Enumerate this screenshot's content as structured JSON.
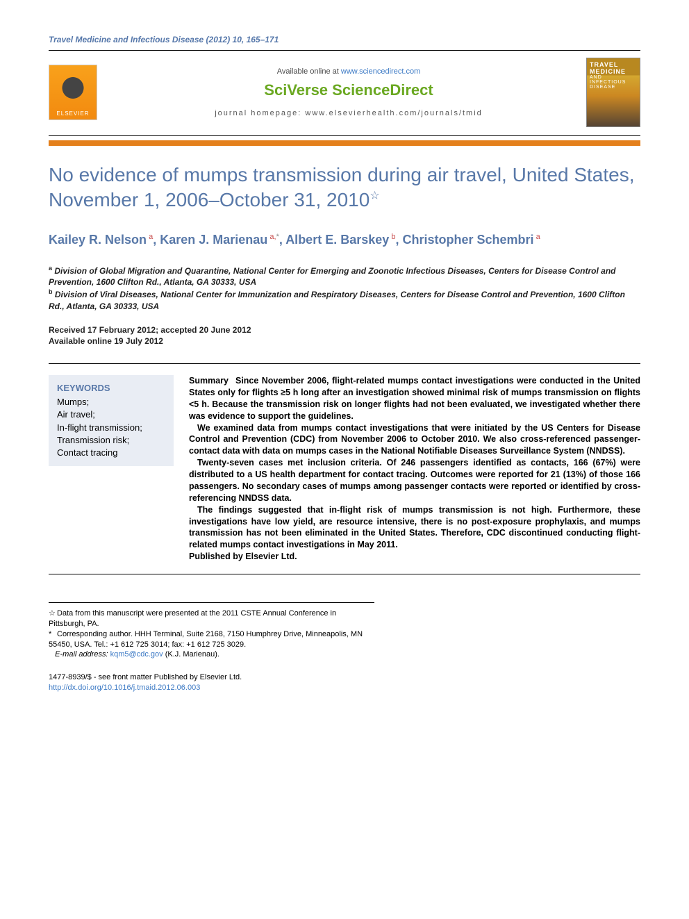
{
  "citation": "Travel Medicine and Infectious Disease (2012) 10, 165–171",
  "header": {
    "available_text": "Available online at ",
    "available_url": "www.sciencedirect.com",
    "brand": "SciVerse ScienceDirect",
    "journal_home_label": "journal homepage: ",
    "journal_home_url": "www.elsevierhealth.com/journals/tmid",
    "elsevier_label": "ELSEVIER",
    "cover_line1": "TRAVEL",
    "cover_line2": "MEDICINE",
    "cover_line3": "AND INFECTIOUS DISEASE"
  },
  "title": "No evidence of mumps transmission during air travel, United States, November 1, 2006–October 31, 2010",
  "title_star": "☆",
  "authors": {
    "a1_name": "Kailey R. Nelson",
    "a1_affil": "a",
    "a2_name": "Karen J. Marienau",
    "a2_affil": "a,",
    "a2_corr": "*",
    "a3_name": "Albert E. Barskey",
    "a3_affil": "b",
    "a4_name": "Christopher Schembri",
    "a4_affil": "a"
  },
  "affiliations": {
    "a_label": "a",
    "a_text": "Division of Global Migration and Quarantine, National Center for Emerging and Zoonotic Infectious Diseases, Centers for Disease Control and Prevention, 1600 Clifton Rd., Atlanta, GA 30333, USA",
    "b_label": "b",
    "b_text": "Division of Viral Diseases, National Center for Immunization and Respiratory Diseases, Centers for Disease Control and Prevention, 1600 Clifton Rd., Atlanta, GA 30333, USA"
  },
  "dates": {
    "received": "Received 17 February 2012; accepted 20 June 2012",
    "online": "Available online 19 July 2012"
  },
  "keywords": {
    "title": "KEYWORDS",
    "items": [
      "Mumps;",
      "Air travel;",
      "In-flight transmission;",
      "Transmission risk;",
      "Contact tracing"
    ]
  },
  "summary": {
    "lead": "Summary",
    "p1": "Since November 2006, flight-related mumps contact investigations were conducted in the United States only for flights ≥5 h long after an investigation showed minimal risk of mumps transmission on flights <5 h. Because the transmission risk on longer flights had not been evaluated, we investigated whether there was evidence to support the guidelines.",
    "p2": "We examined data from mumps contact investigations that were initiated by the US Centers for Disease Control and Prevention (CDC) from November 2006 to October 2010. We also cross-referenced passenger-contact data with data on mumps cases in the National Notifiable Diseases Surveillance System (NNDSS).",
    "p3": "Twenty-seven cases met inclusion criteria. Of 246 passengers identified as contacts, 166 (67%) were distributed to a US health department for contact tracing. Outcomes were reported for 21 (13%) of those 166 passengers. No secondary cases of mumps among passenger contacts were reported or identified by cross-referencing NNDSS data.",
    "p4": "The findings suggested that in-flight risk of mumps transmission is not high. Furthermore, these investigations have low yield, are resource intensive, there is no post-exposure prophylaxis, and mumps transmission has not been eliminated in the United States. Therefore, CDC discontinued conducting flight-related mumps contact investigations in May 2011.",
    "pub": "Published by Elsevier Ltd."
  },
  "footnotes": {
    "star_mark": "☆",
    "star_text": "Data from this manuscript were presented at the 2011 CSTE Annual Conference in Pittsburgh, PA.",
    "corr_mark": "*",
    "corr_text": "Corresponding author. HHH Terminal, Suite 2168, 7150 Humphrey Drive, Minneapolis, MN 55450, USA. Tel.: +1 612 725 3014; fax: +1 612 725 3029.",
    "email_label": "E-mail address: ",
    "email": "kqm5@cdc.gov",
    "email_tail": " (K.J. Marienau)."
  },
  "footer": {
    "issn": "1477-8939/$ - see front matter Published by Elsevier Ltd.",
    "doi": "http://dx.doi.org/10.1016/j.tmaid.2012.06.003"
  },
  "colors": {
    "heading": "#5878a8",
    "accent_green": "#6aa821",
    "accent_orange": "#e4801c",
    "link": "#3a78c4",
    "kw_bg": "#e9edf4",
    "sup_red": "#c94f4f"
  }
}
